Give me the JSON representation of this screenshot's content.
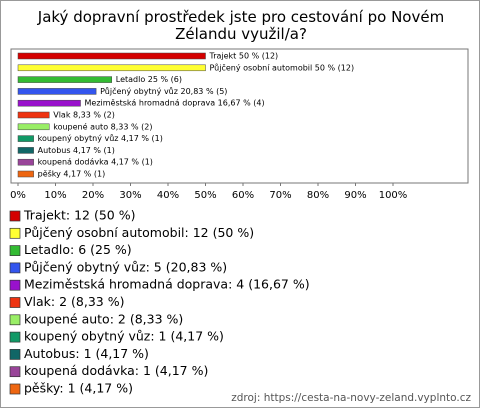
{
  "chart_data": {
    "type": "bar",
    "orientation": "horizontal",
    "title": "Jaký dopravní prostředek jste pro cestování po Novém Zélandu využil/a?",
    "categories": [
      "Trajekt",
      "Půjčený osobní automobil",
      "Letadlo",
      "Půjčený obytný vůz",
      "Meziměstská hromadná doprava",
      "Vlak",
      "koupené auto",
      "koupený obytný vůz",
      "Autobus",
      "koupená dodávka",
      "pěšky"
    ],
    "values": [
      50,
      50,
      25,
      20.83,
      16.67,
      8.33,
      8.33,
      4.17,
      4.17,
      4.17,
      4.17
    ],
    "value_labels": [
      "Trajekt 50 % (12)",
      "Půjčený osobní automobil 50 % (12)",
      "Letadlo 25 % (6)",
      "Půjčený obytný vůz 20,83 % (5)",
      "Meziměstská hromadná doprava 16,67 % (4)",
      "Vlak 8,33 % (2)",
      "koupené auto 8,33 % (2)",
      "koupený obytný vůz 4,17 % (1)",
      "Autobus 4,17 % (1)",
      "koupená dodávka 4,17 % (1)",
      "pěšky 4,17 % (1)"
    ],
    "legend_labels": [
      "Trajekt: 12 (50 %)",
      "Půjčený osobní automobil: 12 (50 %)",
      "Letadlo: 6 (25 %)",
      "Půjčený obytný vůz: 5 (20,83 %)",
      "Meziměstská hromadná doprava: 4 (16,67 %)",
      "Vlak: 2 (8,33 %)",
      "koupené auto: 2 (8,33 %)",
      "koupený obytný vůz: 1 (4,17 %)",
      "Autobus: 1 (4,17 %)",
      "koupená dodávka: 1 (4,17 %)",
      "pěšky: 1 (4,17 %)"
    ],
    "colors": [
      "#d40000",
      "#ffff33",
      "#33bb33",
      "#3355ee",
      "#9911cc",
      "#ee3311",
      "#99ee66",
      "#119966",
      "#116666",
      "#994499",
      "#ee6611"
    ],
    "xlim": [
      0,
      100
    ],
    "xticks": [
      {
        "value": 0,
        "label": "0%"
      },
      {
        "value": 10,
        "label": "10%"
      },
      {
        "value": 20,
        "label": "20%"
      },
      {
        "value": 30,
        "label": "30%"
      },
      {
        "value": 40,
        "label": "40%"
      },
      {
        "value": 50,
        "label": "50%"
      },
      {
        "value": 60,
        "label": "60%"
      },
      {
        "value": 70,
        "label": "70%"
      },
      {
        "value": 80,
        "label": "80%"
      },
      {
        "value": 90,
        "label": "90%"
      },
      {
        "value": 100,
        "label": "100%"
      }
    ],
    "source": "zdroj: https://cesta-na-novy-zeland.vyplnto.cz"
  }
}
